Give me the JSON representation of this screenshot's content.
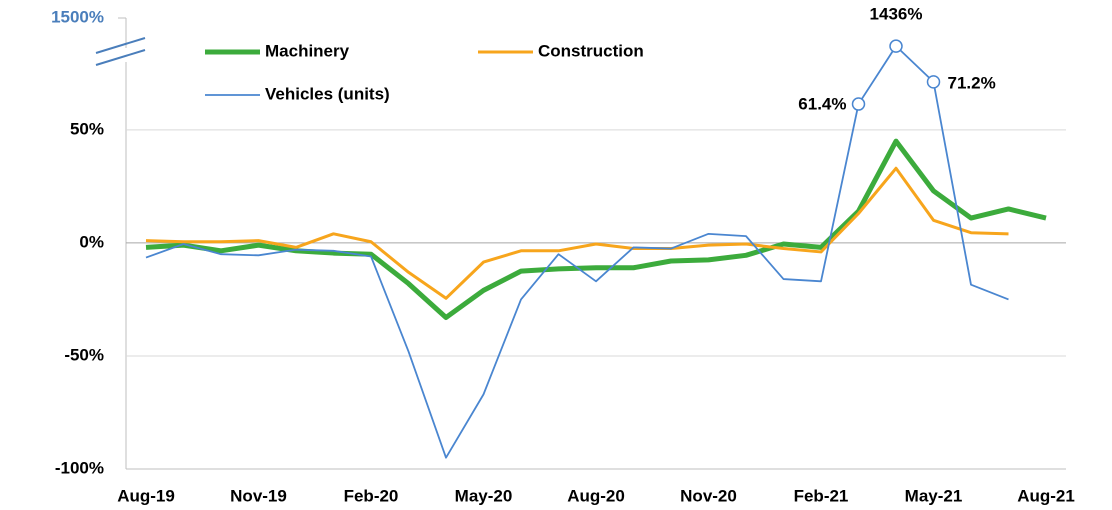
{
  "chart_data": {
    "type": "line",
    "categories": [
      "Aug-19",
      null,
      null,
      "Nov-19",
      null,
      null,
      "Feb-20",
      null,
      null,
      "May-20",
      null,
      null,
      "Aug-20",
      null,
      null,
      "Nov-20",
      null,
      null,
      "Feb-21",
      null,
      null,
      "May-21",
      null,
      null,
      "Aug-21"
    ],
    "series": [
      {
        "name": "Machinery",
        "color": "#3cab3c",
        "width": 5,
        "values": [
          -2,
          -1,
          -3.5,
          -1,
          -3.5,
          -4.5,
          -5,
          -18,
          -33,
          -21,
          -12.5,
          -11.5,
          -11,
          -11,
          -8,
          -7.5,
          -5.5,
          -0.5,
          -2,
          14,
          45,
          23,
          11,
          15,
          11
        ]
      },
      {
        "name": "Construction",
        "color": "#f7a51c",
        "width": 3,
        "values": [
          1,
          0.5,
          0.5,
          1,
          -2,
          4,
          0.5,
          -13,
          -24.5,
          -8.5,
          -3.5,
          -3.5,
          -0.5,
          -2.5,
          -2.5,
          -1,
          -0.5,
          -2.5,
          -4,
          13,
          33,
          10,
          4.5,
          4,
          null
        ]
      },
      {
        "name": "Vehicles (units)",
        "color": "#4a86d0",
        "width": 1.8,
        "values": [
          -6.5,
          -0.5,
          -5,
          -5.5,
          -3,
          -3.5,
          -6,
          -48,
          -95,
          -67,
          -25,
          -5,
          -17,
          -2,
          -2.5,
          4,
          3,
          -16,
          -17,
          61.4,
          1436,
          71.2,
          -18.5,
          -25,
          null
        ],
        "value_labels": [
          null,
          null,
          null,
          null,
          null,
          null,
          null,
          null,
          null,
          null,
          null,
          null,
          null,
          null,
          null,
          null,
          null,
          null,
          null,
          "61.4%",
          "1436%",
          "71.2%",
          null,
          null,
          null
        ]
      }
    ],
    "ylim": [
      -100,
      1500
    ],
    "yticks": [
      {
        "value": -100,
        "label": "-100%"
      },
      {
        "value": -50,
        "label": "-50%"
      },
      {
        "value": 0,
        "label": "0%"
      },
      {
        "value": 50,
        "label": "50%"
      },
      {
        "value": 1500,
        "label": "1500%"
      }
    ],
    "axis_break": {
      "from": 80,
      "to": 1400,
      "color": "#4a7ebb"
    },
    "grid": true,
    "legend": "upper left"
  }
}
